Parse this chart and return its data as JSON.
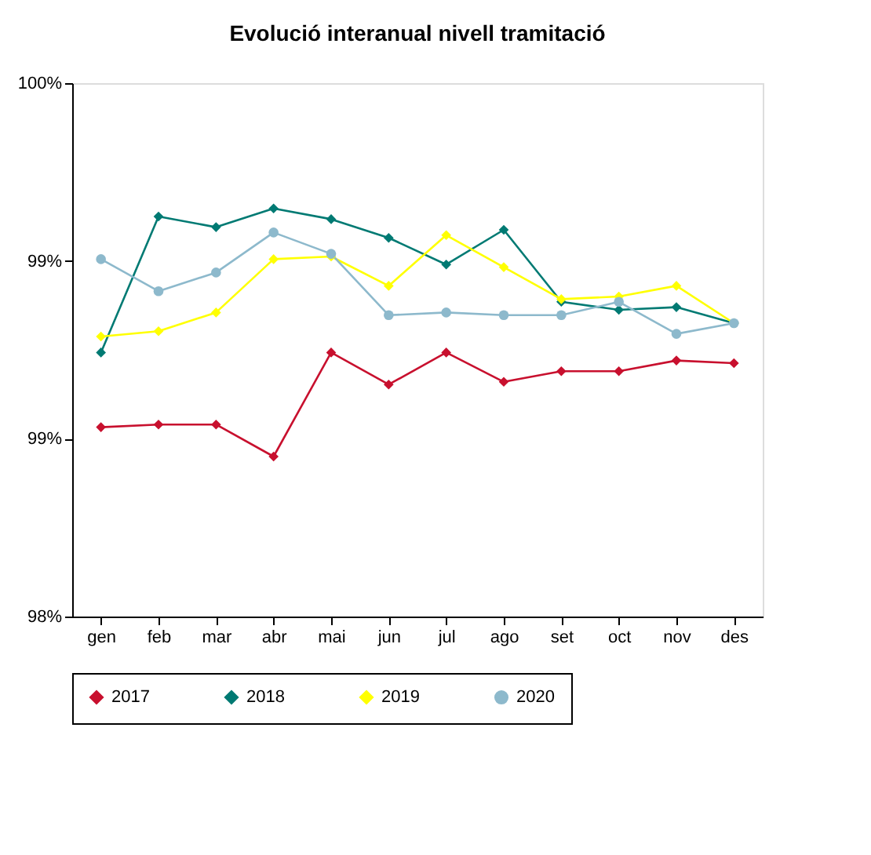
{
  "chart_data": {
    "type": "line",
    "title": "Evolució interanual nivell tramitació",
    "categories": [
      "gen",
      "feb",
      "mar",
      "abr",
      "mai",
      "jun",
      "jul",
      "ago",
      "set",
      "oct",
      "nov",
      "des"
    ],
    "ylim": [
      98,
      100
    ],
    "yticks": [
      {
        "value": 98,
        "label": "98%"
      },
      {
        "value": 98.667,
        "label": "99%"
      },
      {
        "value": 99.333,
        "label": "99%"
      },
      {
        "value": 100,
        "label": "100%"
      }
    ],
    "grid": false,
    "legend": "bottom",
    "series": [
      {
        "name": "2017",
        "color": "#c8102e",
        "marker": "diamond",
        "values": [
          98.71,
          98.72,
          98.72,
          98.6,
          98.99,
          98.87,
          98.99,
          98.88,
          98.92,
          98.92,
          98.96,
          98.95
        ]
      },
      {
        "name": "2018",
        "color": "#007a73",
        "marker": "diamond",
        "values": [
          98.99,
          99.5,
          99.46,
          99.53,
          99.49,
          99.42,
          99.32,
          99.45,
          99.18,
          99.15,
          99.16,
          99.1
        ]
      },
      {
        "name": "2019",
        "color": "#ffff00",
        "marker": "diamond",
        "values": [
          99.05,
          99.07,
          99.14,
          99.34,
          99.35,
          99.24,
          99.43,
          99.31,
          99.19,
          99.2,
          99.24,
          99.1
        ]
      },
      {
        "name": "2020",
        "color": "#8db9cc",
        "marker": "circle",
        "values": [
          99.34,
          99.22,
          99.29,
          99.44,
          99.36,
          99.13,
          99.14,
          99.13,
          99.13,
          99.18,
          99.06,
          99.1
        ]
      }
    ]
  }
}
